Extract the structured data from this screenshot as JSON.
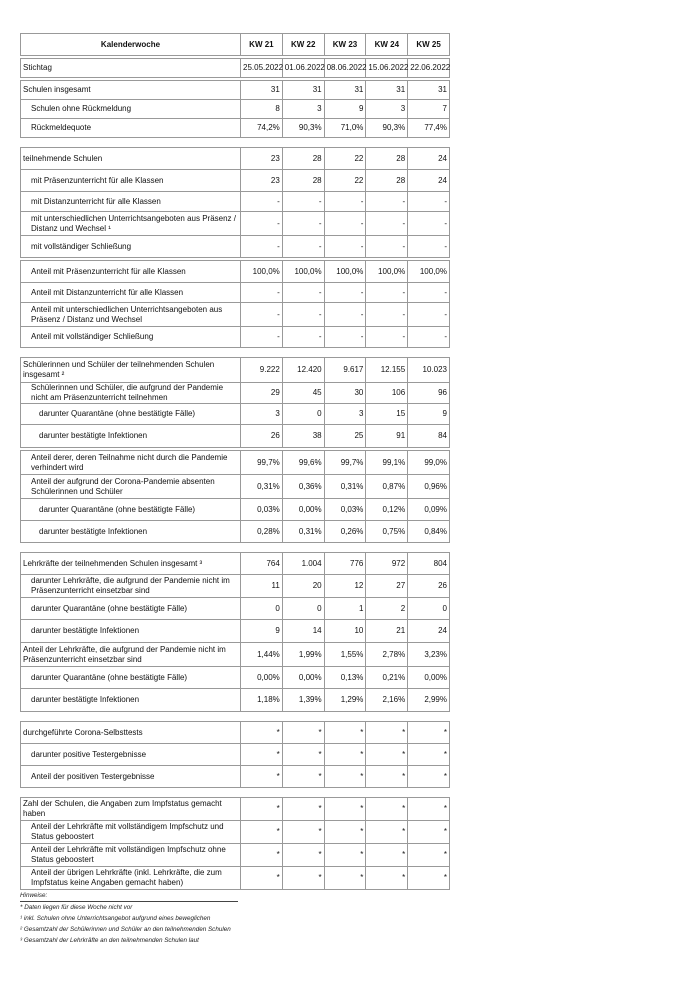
{
  "header": {
    "label": "Kalenderwoche",
    "weeks": [
      "KW 21",
      "KW 22",
      "KW 23",
      "KW 24",
      "KW 25"
    ]
  },
  "sections": [
    {
      "rows": [
        {
          "label": "Stichtag",
          "indent": 0,
          "values": [
            "25.05.2022",
            "01.06.2022",
            "08.06.2022",
            "15.06.2022",
            "22.06.2022"
          ]
        }
      ]
    },
    {
      "rows": [
        {
          "label": "Schulen insgesamt",
          "indent": 0,
          "values": [
            "31",
            "31",
            "31",
            "31",
            "31"
          ]
        },
        {
          "label": "Schulen ohne Rückmeldung",
          "indent": 1,
          "values": [
            "8",
            "3",
            "9",
            "3",
            "7"
          ]
        },
        {
          "label": "Rückmeldequote",
          "indent": 1,
          "values": [
            "74,2%",
            "90,3%",
            "71,0%",
            "90,3%",
            "77,4%"
          ]
        }
      ]
    },
    {
      "gap": true,
      "rows": [
        {
          "label": "teilnehmende Schulen",
          "indent": 0,
          "values": [
            "23",
            "28",
            "22",
            "28",
            "24"
          ]
        },
        {
          "label": "mit Präsenzunterricht für alle Klassen",
          "indent": 1,
          "values": [
            "23",
            "28",
            "22",
            "28",
            "24"
          ]
        },
        {
          "label": "mit Distanzunterricht für alle Klassen",
          "indent": 1,
          "values": [
            "-",
            "-",
            "-",
            "-",
            "-"
          ]
        },
        {
          "label": "mit unterschiedlichen Unterrichtsangeboten aus Präsenz / Distanz und Wechsel ¹",
          "indent": 1,
          "values": [
            "-",
            "-",
            "-",
            "-",
            "-"
          ]
        },
        {
          "label": "mit vollständiger Schließung",
          "indent": 1,
          "values": [
            "-",
            "-",
            "-",
            "-",
            "-"
          ]
        }
      ]
    },
    {
      "rows": [
        {
          "label": "Anteil mit Präsenzunterricht für alle Klassen",
          "indent": 1,
          "values": [
            "100,0%",
            "100,0%",
            "100,0%",
            "100,0%",
            "100,0%"
          ]
        },
        {
          "label": "Anteil mit Distanzunterricht für alle Klassen",
          "indent": 1,
          "values": [
            "-",
            "-",
            "-",
            "-",
            "-"
          ]
        },
        {
          "label": "Anteil mit unterschiedlichen Unterrichtsangeboten aus Präsenz / Distanz und Wechsel",
          "indent": 1,
          "values": [
            "-",
            "-",
            "-",
            "-",
            "-"
          ]
        },
        {
          "label": "Anteil mit vollständiger Schließung",
          "indent": 1,
          "values": [
            "-",
            "-",
            "-",
            "-",
            "-"
          ]
        }
      ]
    },
    {
      "gap": true,
      "rows": [
        {
          "label": "Schülerinnen und Schüler der teilnehmenden Schulen insgesamt ²",
          "indent": 0,
          "values": [
            "9.222",
            "12.420",
            "9.617",
            "12.155",
            "10.023"
          ]
        },
        {
          "label": "Schülerinnen und Schüler, die aufgrund der Pandemie nicht am Präsenzunterricht teilnehmen",
          "indent": 1,
          "values": [
            "29",
            "45",
            "30",
            "106",
            "96"
          ]
        },
        {
          "label": "darunter Quarantäne (ohne bestätigte Fälle)",
          "indent": 2,
          "values": [
            "3",
            "0",
            "3",
            "15",
            "9"
          ]
        },
        {
          "label": "darunter bestätigte Infektionen",
          "indent": 2,
          "values": [
            "26",
            "38",
            "25",
            "91",
            "84"
          ]
        }
      ]
    },
    {
      "rows": [
        {
          "label": "Anteil derer, deren Teilnahme nicht durch die Pandemie verhindert wird",
          "indent": 1,
          "values": [
            "99,7%",
            "99,6%",
            "99,7%",
            "99,1%",
            "99,0%"
          ]
        },
        {
          "label": "Anteil der aufgrund der Corona-Pandemie absenten Schülerinnen und Schüler",
          "indent": 1,
          "values": [
            "0,31%",
            "0,36%",
            "0,31%",
            "0,87%",
            "0,96%"
          ]
        },
        {
          "label": "darunter Quarantäne (ohne bestätigte Fälle)",
          "indent": 2,
          "values": [
            "0,03%",
            "0,00%",
            "0,03%",
            "0,12%",
            "0,09%"
          ]
        },
        {
          "label": "darunter bestätigte Infektionen",
          "indent": 2,
          "values": [
            "0,28%",
            "0,31%",
            "0,26%",
            "0,75%",
            "0,84%"
          ]
        }
      ]
    },
    {
      "gap": true,
      "rows": [
        {
          "label": "Lehrkräfte der teilnehmenden Schulen insgesamt ³",
          "indent": 0,
          "values": [
            "764",
            "1.004",
            "776",
            "972",
            "804"
          ]
        },
        {
          "label": "darunter Lehrkräfte, die aufgrund der Pandemie nicht im Präsenzunterricht einsetzbar sind",
          "indent": 1,
          "values": [
            "11",
            "20",
            "12",
            "27",
            "26"
          ]
        },
        {
          "label": "darunter Quarantäne (ohne bestätigte Fälle)",
          "indent": 1,
          "values": [
            "0",
            "0",
            "1",
            "2",
            "0"
          ]
        },
        {
          "label": "darunter bestätigte Infektionen",
          "indent": 1,
          "values": [
            "9",
            "14",
            "10",
            "21",
            "24"
          ]
        },
        {
          "label": "Anteil der Lehrkräfte, die aufgrund der Pandemie nicht im Präsenzunterricht einsetzbar sind",
          "indent": 0,
          "values": [
            "1,44%",
            "1,99%",
            "1,55%",
            "2,78%",
            "3,23%"
          ]
        },
        {
          "label": "darunter Quarantäne (ohne bestätigte Fälle)",
          "indent": 1,
          "values": [
            "0,00%",
            "0,00%",
            "0,13%",
            "0,21%",
            "0,00%"
          ]
        },
        {
          "label": "darunter bestätigte Infektionen",
          "indent": 1,
          "values": [
            "1,18%",
            "1,39%",
            "1,29%",
            "2,16%",
            "2,99%"
          ]
        }
      ]
    },
    {
      "gap": true,
      "rows": [
        {
          "label": "durchgeführte Corona-Selbsttests",
          "indent": 0,
          "values": [
            "*",
            "*",
            "*",
            "*",
            "*"
          ]
        },
        {
          "label": "darunter positive Testergebnisse",
          "indent": 1,
          "values": [
            "*",
            "*",
            "*",
            "*",
            "*"
          ]
        },
        {
          "label": "Anteil der positiven Testergebnisse",
          "indent": 1,
          "values": [
            "*",
            "*",
            "*",
            "*",
            "*"
          ]
        }
      ]
    },
    {
      "gap": true,
      "rows": [
        {
          "label": "Zahl der Schulen, die Angaben zum Impfstatus gemacht haben",
          "indent": 0,
          "values": [
            "*",
            "*",
            "*",
            "*",
            "*"
          ]
        },
        {
          "label": "Anteil der Lehrkräfte mit vollständigem Impfschutz und Status geboostert",
          "indent": 1,
          "values": [
            "*",
            "*",
            "*",
            "*",
            "*"
          ]
        },
        {
          "label": "Anteil der Lehrkräfte mit vollständigen Impfschutz ohne Status geboostert",
          "indent": 1,
          "values": [
            "*",
            "*",
            "*",
            "*",
            "*"
          ]
        },
        {
          "label": "Anteil der übrigen Lehrkräfte (inkl. Lehrkräfte, die zum Impfstatus keine Angaben gemacht haben)",
          "indent": 1,
          "values": [
            "*",
            "*",
            "*",
            "*",
            "*"
          ]
        }
      ]
    }
  ],
  "notes": {
    "title": "Hinweise:",
    "items": [
      "* Daten liegen für diese Woche nicht vor",
      "¹ inkl. Schulen ohne Unterrichtsangebot aufgrund eines beweglichen",
      "² Gesamtzahl der Schülerinnen und Schüler an den teilnehmenden Schulen",
      "³ Gesamtzahl der Lehrkräfte an den teilnehmenden Schulen laut"
    ]
  }
}
